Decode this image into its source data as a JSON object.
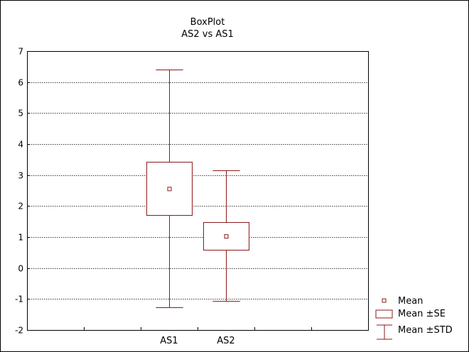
{
  "chart_data": {
    "type": "boxplot",
    "title": "BoxPlot",
    "subtitle": "AS2 vs AS1",
    "xlabel": "",
    "ylabel": "",
    "ylim": [
      -2,
      7
    ],
    "y_ticks": [
      7,
      6,
      5,
      4,
      3,
      2,
      1,
      0,
      -1,
      -2
    ],
    "grid": true,
    "categories": [
      "AS1",
      "AS2"
    ],
    "boxes": [
      {
        "category": "AS1",
        "mean": 2.55,
        "se_low": 1.72,
        "se_high": 3.42,
        "std_low": -1.27,
        "std_high": 6.4
      },
      {
        "category": "AS2",
        "mean": 1.02,
        "se_low": 0.58,
        "se_high": 1.48,
        "std_low": -1.06,
        "std_high": 3.16
      }
    ],
    "legend": {
      "placement": "bottom-right",
      "entries": [
        {
          "symbol": "mean-marker",
          "label": "Mean"
        },
        {
          "symbol": "box",
          "label": "Mean ±SE"
        },
        {
          "symbol": "whisker",
          "label": "Mean ±STD"
        }
      ]
    },
    "color": "#8b1a1a"
  }
}
